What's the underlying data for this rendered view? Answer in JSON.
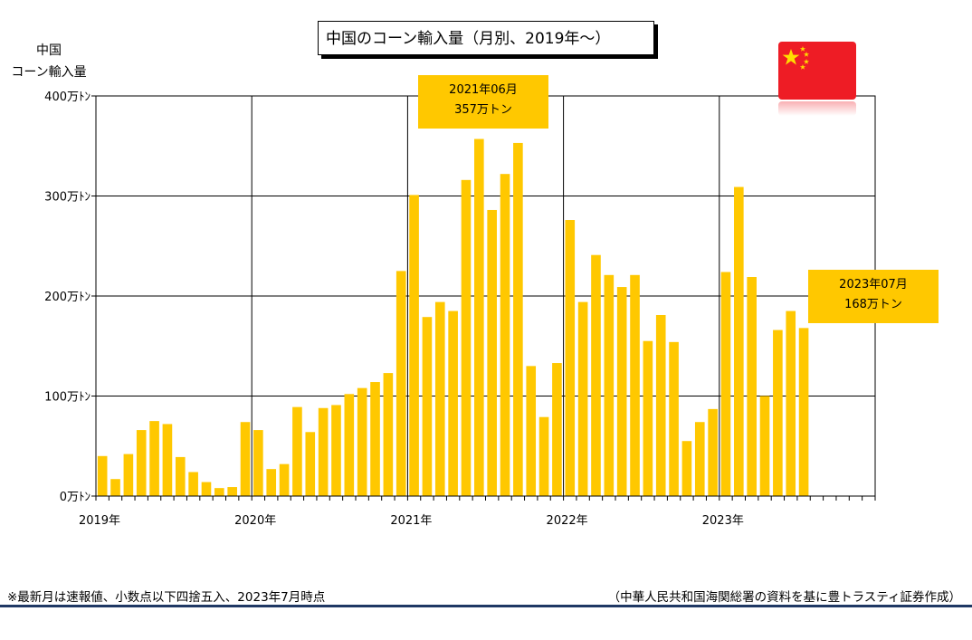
{
  "title": "中国のコーン輸入量（月別、2019年～）",
  "ylabel_lines": [
    "中国",
    "コーン輸入量"
  ],
  "callouts": {
    "peak": {
      "date": "2021年06月",
      "value": "357万トン"
    },
    "latest": {
      "date": "2023年07月",
      "value": "168万トン"
    }
  },
  "footnote": "※最新月は速報値、小数点以下四捨五入、2023年7月時点",
  "source": "（中華人民共和国海関総署の資料を基に豊トラスティ証券作成）",
  "colors": {
    "bar": "#ffc800",
    "rule": "#1f3864",
    "flag_red": "#ee1c25",
    "flag_star": "#ffde00"
  },
  "flag_icon": "china-flag-icon",
  "chart_data": {
    "type": "bar",
    "ylim": [
      0,
      400
    ],
    "y_ticks": [
      0,
      100,
      200,
      300,
      400
    ],
    "y_tick_labels": [
      "0万ﾄﾝ",
      "100万ﾄﾝ",
      "200万ﾄﾝ",
      "300万ﾄﾝ",
      "400万ﾄﾝ"
    ],
    "x_tick_labels": [
      "2019年",
      "2020年",
      "2021年",
      "2022年",
      "2023年"
    ],
    "start": "2019-01",
    "slots": 60,
    "grid": true,
    "series": [
      {
        "values": [
          40,
          17,
          42,
          66,
          75,
          72,
          39,
          24,
          14,
          8,
          9,
          74,
          66,
          27,
          32,
          89,
          64,
          88,
          91,
          102,
          108,
          114,
          123,
          225,
          301,
          179,
          194,
          185,
          316,
          357,
          286,
          322,
          353,
          130,
          79,
          133,
          276,
          194,
          241,
          221,
          209,
          221,
          155,
          181,
          154,
          55,
          74,
          87,
          224,
          309,
          219,
          100,
          166,
          185,
          168
        ]
      }
    ]
  }
}
